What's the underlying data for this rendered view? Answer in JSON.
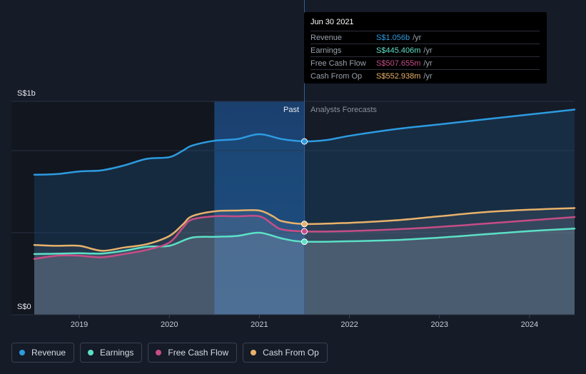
{
  "chart_data": {
    "type": "area",
    "y_top_label": "S$1b",
    "y_bottom_label": "S$0",
    "ylim": [
      0,
      1.3
    ],
    "xlim": [
      2018.5,
      2024.5
    ],
    "x_ticks": [
      {
        "value": 2019,
        "label": "2019"
      },
      {
        "value": 2020,
        "label": "2020"
      },
      {
        "value": 2021,
        "label": "2021"
      },
      {
        "value": 2022,
        "label": "2022"
      },
      {
        "value": 2023,
        "label": "2023"
      },
      {
        "value": 2024,
        "label": "2024"
      }
    ],
    "past_label": "Past",
    "forecast_label": "Analysts Forecasts",
    "past_region_start": 2020.5,
    "divider_x": 2021.5,
    "series": [
      {
        "name": "Revenue",
        "color": "#2d9be0",
        "points": [
          [
            2018.5,
            0.853
          ],
          [
            2018.75,
            0.857
          ],
          [
            2019.0,
            0.873
          ],
          [
            2019.25,
            0.88
          ],
          [
            2019.5,
            0.91
          ],
          [
            2019.75,
            0.95
          ],
          [
            2020.0,
            0.96
          ],
          [
            2020.15,
            1.0
          ],
          [
            2020.25,
            1.03
          ],
          [
            2020.5,
            1.06
          ],
          [
            2020.75,
            1.07
          ],
          [
            2021.0,
            1.1
          ],
          [
            2021.25,
            1.07
          ],
          [
            2021.5,
            1.056
          ],
          [
            2021.75,
            1.065
          ],
          [
            2022.0,
            1.09
          ],
          [
            2022.5,
            1.13
          ],
          [
            2023.0,
            1.16
          ],
          [
            2023.5,
            1.19
          ],
          [
            2024.0,
            1.22
          ],
          [
            2024.5,
            1.25
          ]
        ]
      },
      {
        "name": "Earnings",
        "color": "#5ce0c6",
        "points": [
          [
            2018.5,
            0.37
          ],
          [
            2018.75,
            0.372
          ],
          [
            2019.0,
            0.375
          ],
          [
            2019.25,
            0.373
          ],
          [
            2019.5,
            0.39
          ],
          [
            2019.75,
            0.415
          ],
          [
            2020.0,
            0.42
          ],
          [
            2020.25,
            0.47
          ],
          [
            2020.5,
            0.475
          ],
          [
            2020.75,
            0.48
          ],
          [
            2021.0,
            0.5
          ],
          [
            2021.25,
            0.465
          ],
          [
            2021.5,
            0.445
          ],
          [
            2022.0,
            0.448
          ],
          [
            2022.5,
            0.455
          ],
          [
            2023.0,
            0.47
          ],
          [
            2023.5,
            0.49
          ],
          [
            2024.0,
            0.51
          ],
          [
            2024.5,
            0.525
          ]
        ]
      },
      {
        "name": "Free Cash Flow",
        "color": "#c64d86",
        "points": [
          [
            2018.5,
            0.34
          ],
          [
            2018.75,
            0.36
          ],
          [
            2019.0,
            0.36
          ],
          [
            2019.25,
            0.35
          ],
          [
            2019.5,
            0.37
          ],
          [
            2019.75,
            0.395
          ],
          [
            2020.0,
            0.44
          ],
          [
            2020.15,
            0.53
          ],
          [
            2020.25,
            0.58
          ],
          [
            2020.5,
            0.6
          ],
          [
            2020.75,
            0.6
          ],
          [
            2021.0,
            0.6
          ],
          [
            2021.15,
            0.55
          ],
          [
            2021.25,
            0.52
          ],
          [
            2021.5,
            0.508
          ],
          [
            2022.0,
            0.51
          ],
          [
            2022.5,
            0.52
          ],
          [
            2023.0,
            0.535
          ],
          [
            2023.5,
            0.555
          ],
          [
            2024.0,
            0.575
          ],
          [
            2024.5,
            0.595
          ]
        ]
      },
      {
        "name": "Cash From Op",
        "color": "#e8b26b",
        "points": [
          [
            2018.5,
            0.425
          ],
          [
            2018.75,
            0.42
          ],
          [
            2019.0,
            0.42
          ],
          [
            2019.25,
            0.39
          ],
          [
            2019.5,
            0.41
          ],
          [
            2019.75,
            0.43
          ],
          [
            2020.0,
            0.48
          ],
          [
            2020.15,
            0.55
          ],
          [
            2020.25,
            0.6
          ],
          [
            2020.5,
            0.63
          ],
          [
            2020.75,
            0.635
          ],
          [
            2021.0,
            0.635
          ],
          [
            2021.15,
            0.6
          ],
          [
            2021.25,
            0.57
          ],
          [
            2021.5,
            0.553
          ],
          [
            2022.0,
            0.56
          ],
          [
            2022.5,
            0.575
          ],
          [
            2023.0,
            0.6
          ],
          [
            2023.5,
            0.625
          ],
          [
            2024.0,
            0.64
          ],
          [
            2024.5,
            0.65
          ]
        ]
      }
    ]
  },
  "tooltip": {
    "date": "Jun 30 2021",
    "rows": [
      {
        "label": "Revenue",
        "value": "S$1.056b",
        "unit": "/yr",
        "color": "#2d9be0"
      },
      {
        "label": "Earnings",
        "value": "S$445.406m",
        "unit": "/yr",
        "color": "#5ce0c6"
      },
      {
        "label": "Free Cash Flow",
        "value": "S$507.655m",
        "unit": "/yr",
        "color": "#c64d86"
      },
      {
        "label": "Cash From Op",
        "value": "S$552.938m",
        "unit": "/yr",
        "color": "#e8b26b"
      }
    ]
  },
  "legend": [
    {
      "label": "Revenue",
      "color": "#2d9be0"
    },
    {
      "label": "Earnings",
      "color": "#5ce0c6"
    },
    {
      "label": "Free Cash Flow",
      "color": "#c64d86"
    },
    {
      "label": "Cash From Op",
      "color": "#e8b26b"
    }
  ]
}
